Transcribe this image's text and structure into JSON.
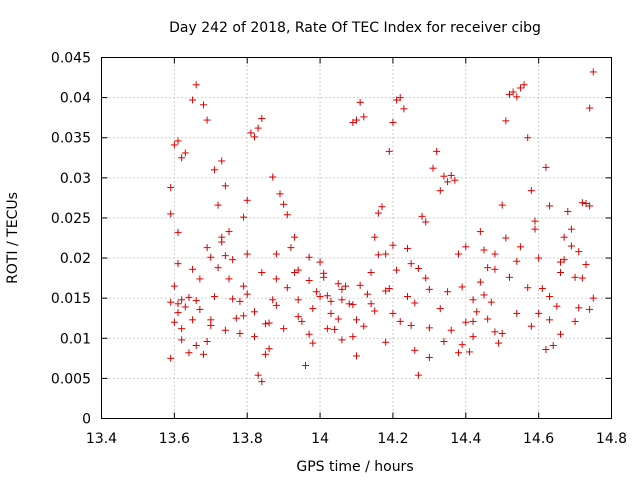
{
  "chart_data": {
    "type": "scatter",
    "title": "Day 242 of 2018, Rate Of TEC Index for receiver cibg",
    "xlabel": "GPS time / hours",
    "ylabel": "ROTI / TECUs",
    "xlim": [
      13.4,
      14.8
    ],
    "ylim": [
      0,
      0.045
    ],
    "xticks": [
      "13.4",
      "13.6",
      "13.8",
      "14",
      "14.2",
      "14.4",
      "14.6",
      "14.8"
    ],
    "yticks": [
      "0",
      "0.005",
      "0.01",
      "0.015",
      "0.02",
      "0.025",
      "0.03",
      "0.035",
      "0.04",
      "0.045"
    ],
    "grid": true,
    "marker": "+",
    "color": "#dd0000",
    "series": [
      {
        "name": "ROTI",
        "points": [
          [
            13.59,
            0.0075
          ],
          [
            13.6,
            0.012
          ],
          [
            13.61,
            0.0143
          ],
          [
            13.6,
            0.0165
          ],
          [
            13.61,
            0.0193
          ],
          [
            13.59,
            0.0255
          ],
          [
            13.59,
            0.0288
          ],
          [
            13.6,
            0.0341
          ],
          [
            13.61,
            0.0346
          ],
          [
            13.62,
            0.0325
          ],
          [
            13.63,
            0.0331
          ],
          [
            13.61,
            0.0232
          ],
          [
            13.62,
            0.0148
          ],
          [
            13.63,
            0.0139
          ],
          [
            13.62,
            0.0098
          ],
          [
            13.64,
            0.0082
          ],
          [
            13.65,
            0.0123
          ],
          [
            13.66,
            0.0147
          ],
          [
            13.65,
            0.0397
          ],
          [
            13.66,
            0.0416
          ],
          [
            13.68,
            0.0391
          ],
          [
            13.69,
            0.0372
          ],
          [
            13.67,
            0.0136
          ],
          [
            13.68,
            0.008
          ],
          [
            13.69,
            0.0096
          ],
          [
            13.7,
            0.0116
          ],
          [
            13.71,
            0.0152
          ],
          [
            13.72,
            0.0188
          ],
          [
            13.71,
            0.031
          ],
          [
            13.73,
            0.0321
          ],
          [
            13.74,
            0.029
          ],
          [
            13.73,
            0.022
          ],
          [
            13.74,
            0.0203
          ],
          [
            13.75,
            0.0174
          ],
          [
            13.76,
            0.0149
          ],
          [
            13.77,
            0.0125
          ],
          [
            13.78,
            0.0106
          ],
          [
            13.79,
            0.0128
          ],
          [
            13.8,
            0.0155
          ],
          [
            13.79,
            0.0251
          ],
          [
            13.8,
            0.0272
          ],
          [
            13.81,
            0.0356
          ],
          [
            13.82,
            0.0351
          ],
          [
            13.83,
            0.0362
          ],
          [
            13.84,
            0.0374
          ],
          [
            13.83,
            0.0054
          ],
          [
            13.84,
            0.0046
          ],
          [
            13.85,
            0.008
          ],
          [
            13.86,
            0.0119
          ],
          [
            13.87,
            0.0148
          ],
          [
            13.88,
            0.0174
          ],
          [
            13.87,
            0.0301
          ],
          [
            13.89,
            0.028
          ],
          [
            13.9,
            0.0267
          ],
          [
            13.91,
            0.0254
          ],
          [
            13.92,
            0.0213
          ],
          [
            13.93,
            0.0182
          ],
          [
            13.94,
            0.0148
          ],
          [
            13.95,
            0.0121
          ],
          [
            13.96,
            0.0066
          ],
          [
            13.97,
            0.0105
          ],
          [
            13.98,
            0.0137
          ],
          [
            13.99,
            0.0158
          ],
          [
            14.0,
            0.0195
          ],
          [
            14.01,
            0.0176
          ],
          [
            14.02,
            0.0153
          ],
          [
            14.03,
            0.0131
          ],
          [
            14.04,
            0.0111
          ],
          [
            14.05,
            0.0124
          ],
          [
            14.06,
            0.0148
          ],
          [
            14.07,
            0.0165
          ],
          [
            14.08,
            0.0143
          ],
          [
            14.09,
            0.0102
          ],
          [
            14.1,
            0.0078
          ],
          [
            14.09,
            0.0369
          ],
          [
            14.1,
            0.0372
          ],
          [
            14.11,
            0.0394
          ],
          [
            14.12,
            0.0376
          ],
          [
            14.13,
            0.0155
          ],
          [
            14.14,
            0.0182
          ],
          [
            14.15,
            0.0226
          ],
          [
            14.16,
            0.0256
          ],
          [
            14.17,
            0.0264
          ],
          [
            14.18,
            0.0205
          ],
          [
            14.19,
            0.0162
          ],
          [
            14.2,
            0.0131
          ],
          [
            14.19,
            0.0333
          ],
          [
            14.2,
            0.0369
          ],
          [
            14.21,
            0.0397
          ],
          [
            14.22,
            0.04
          ],
          [
            14.23,
            0.0386
          ],
          [
            14.24,
            0.0152
          ],
          [
            14.25,
            0.0116
          ],
          [
            14.26,
            0.0085
          ],
          [
            14.27,
            0.0054
          ],
          [
            14.28,
            0.0252
          ],
          [
            14.29,
            0.0245
          ],
          [
            14.3,
            0.0113
          ],
          [
            14.31,
            0.0312
          ],
          [
            14.32,
            0.0333
          ],
          [
            14.33,
            0.0284
          ],
          [
            14.34,
            0.0302
          ],
          [
            14.35,
            0.0295
          ],
          [
            14.36,
            0.0303
          ],
          [
            14.37,
            0.0297
          ],
          [
            14.38,
            0.0205
          ],
          [
            14.39,
            0.0164
          ],
          [
            14.4,
            0.012
          ],
          [
            14.41,
            0.0083
          ],
          [
            14.42,
            0.0102
          ],
          [
            14.43,
            0.0133
          ],
          [
            14.44,
            0.017
          ],
          [
            14.45,
            0.021
          ],
          [
            14.46,
            0.0188
          ],
          [
            14.47,
            0.0145
          ],
          [
            14.48,
            0.0108
          ],
          [
            14.49,
            0.0094
          ],
          [
            14.5,
            0.0266
          ],
          [
            14.51,
            0.0371
          ],
          [
            14.52,
            0.0404
          ],
          [
            14.53,
            0.0407
          ],
          [
            14.54,
            0.0401
          ],
          [
            14.55,
            0.0412
          ],
          [
            14.56,
            0.0416
          ],
          [
            14.57,
            0.035
          ],
          [
            14.58,
            0.0284
          ],
          [
            14.59,
            0.0246
          ],
          [
            14.6,
            0.02
          ],
          [
            14.61,
            0.0162
          ],
          [
            14.62,
            0.0313
          ],
          [
            14.63,
            0.0123
          ],
          [
            14.64,
            0.0091
          ],
          [
            14.65,
            0.014
          ],
          [
            14.66,
            0.0182
          ],
          [
            14.67,
            0.0226
          ],
          [
            14.68,
            0.0258
          ],
          [
            14.69,
            0.0215
          ],
          [
            14.7,
            0.0176
          ],
          [
            14.71,
            0.0138
          ],
          [
            14.72,
            0.0269
          ],
          [
            14.73,
            0.0268
          ],
          [
            14.74,
            0.0387
          ],
          [
            14.75,
            0.0432
          ],
          [
            14.74,
            0.0265
          ],
          [
            13.59,
            0.0145
          ],
          [
            13.61,
            0.0132
          ],
          [
            13.64,
            0.0151
          ],
          [
            13.67,
            0.0174
          ],
          [
            13.7,
            0.0201
          ],
          [
            13.73,
            0.0226
          ],
          [
            13.76,
            0.0198
          ],
          [
            13.79,
            0.0165
          ],
          [
            13.82,
            0.0133
          ],
          [
            13.85,
            0.0118
          ],
          [
            13.88,
            0.0141
          ],
          [
            13.91,
            0.0163
          ],
          [
            13.94,
            0.0185
          ],
          [
            13.97,
            0.0172
          ],
          [
            14.0,
            0.0152
          ],
          [
            14.03,
            0.0146
          ],
          [
            14.06,
            0.0161
          ],
          [
            14.09,
            0.0142
          ],
          [
            14.12,
            0.0115
          ],
          [
            14.15,
            0.0134
          ],
          [
            14.18,
            0.0159
          ],
          [
            14.21,
            0.0185
          ],
          [
            14.24,
            0.0212
          ],
          [
            14.27,
            0.0187
          ],
          [
            14.3,
            0.0161
          ],
          [
            14.33,
            0.0137
          ],
          [
            14.36,
            0.011
          ],
          [
            14.39,
            0.0092
          ],
          [
            14.42,
            0.0121
          ],
          [
            14.45,
            0.0154
          ],
          [
            14.48,
            0.0186
          ],
          [
            14.51,
            0.0225
          ],
          [
            14.54,
            0.0196
          ],
          [
            14.57,
            0.0163
          ],
          [
            14.6,
            0.0131
          ],
          [
            14.63,
            0.0152
          ],
          [
            14.66,
            0.0195
          ],
          [
            14.69,
            0.0236
          ],
          [
            14.72,
            0.0175
          ],
          [
            14.75,
            0.015
          ],
          [
            13.62,
            0.0112
          ],
          [
            13.66,
            0.0091
          ],
          [
            13.7,
            0.0123
          ],
          [
            13.74,
            0.011
          ],
          [
            13.78,
            0.0146
          ],
          [
            13.82,
            0.0102
          ],
          [
            13.86,
            0.0087
          ],
          [
            13.9,
            0.0112
          ],
          [
            13.94,
            0.0127
          ],
          [
            13.98,
            0.0094
          ],
          [
            14.02,
            0.0112
          ],
          [
            14.06,
            0.0098
          ],
          [
            14.1,
            0.0123
          ],
          [
            14.14,
            0.0143
          ],
          [
            14.18,
            0.0095
          ],
          [
            14.22,
            0.0121
          ],
          [
            14.26,
            0.0144
          ],
          [
            14.3,
            0.0076
          ],
          [
            14.34,
            0.0096
          ],
          [
            14.38,
            0.0082
          ],
          [
            14.42,
            0.0148
          ],
          [
            14.46,
            0.0124
          ],
          [
            14.5,
            0.0106
          ],
          [
            14.54,
            0.0131
          ],
          [
            14.58,
            0.0115
          ],
          [
            14.62,
            0.0086
          ],
          [
            14.66,
            0.0105
          ],
          [
            14.7,
            0.0121
          ],
          [
            14.74,
            0.0136
          ],
          [
            13.65,
            0.0186
          ],
          [
            13.69,
            0.0213
          ],
          [
            13.72,
            0.0266
          ],
          [
            13.75,
            0.0233
          ],
          [
            13.8,
            0.0205
          ],
          [
            13.84,
            0.0182
          ],
          [
            13.88,
            0.0205
          ],
          [
            13.93,
            0.0226
          ],
          [
            13.97,
            0.0201
          ],
          [
            14.01,
            0.0181
          ],
          [
            14.05,
            0.0168
          ],
          [
            14.11,
            0.0166
          ],
          [
            14.16,
            0.0204
          ],
          [
            14.2,
            0.0216
          ],
          [
            14.25,
            0.0193
          ],
          [
            14.29,
            0.0175
          ],
          [
            14.35,
            0.0158
          ],
          [
            14.4,
            0.0214
          ],
          [
            14.44,
            0.0233
          ],
          [
            14.48,
            0.0205
          ],
          [
            14.52,
            0.0176
          ],
          [
            14.55,
            0.0214
          ],
          [
            14.59,
            0.0236
          ],
          [
            14.63,
            0.0265
          ],
          [
            14.67,
            0.0198
          ],
          [
            14.71,
            0.0208
          ],
          [
            14.73,
            0.0192
          ]
        ]
      }
    ]
  }
}
